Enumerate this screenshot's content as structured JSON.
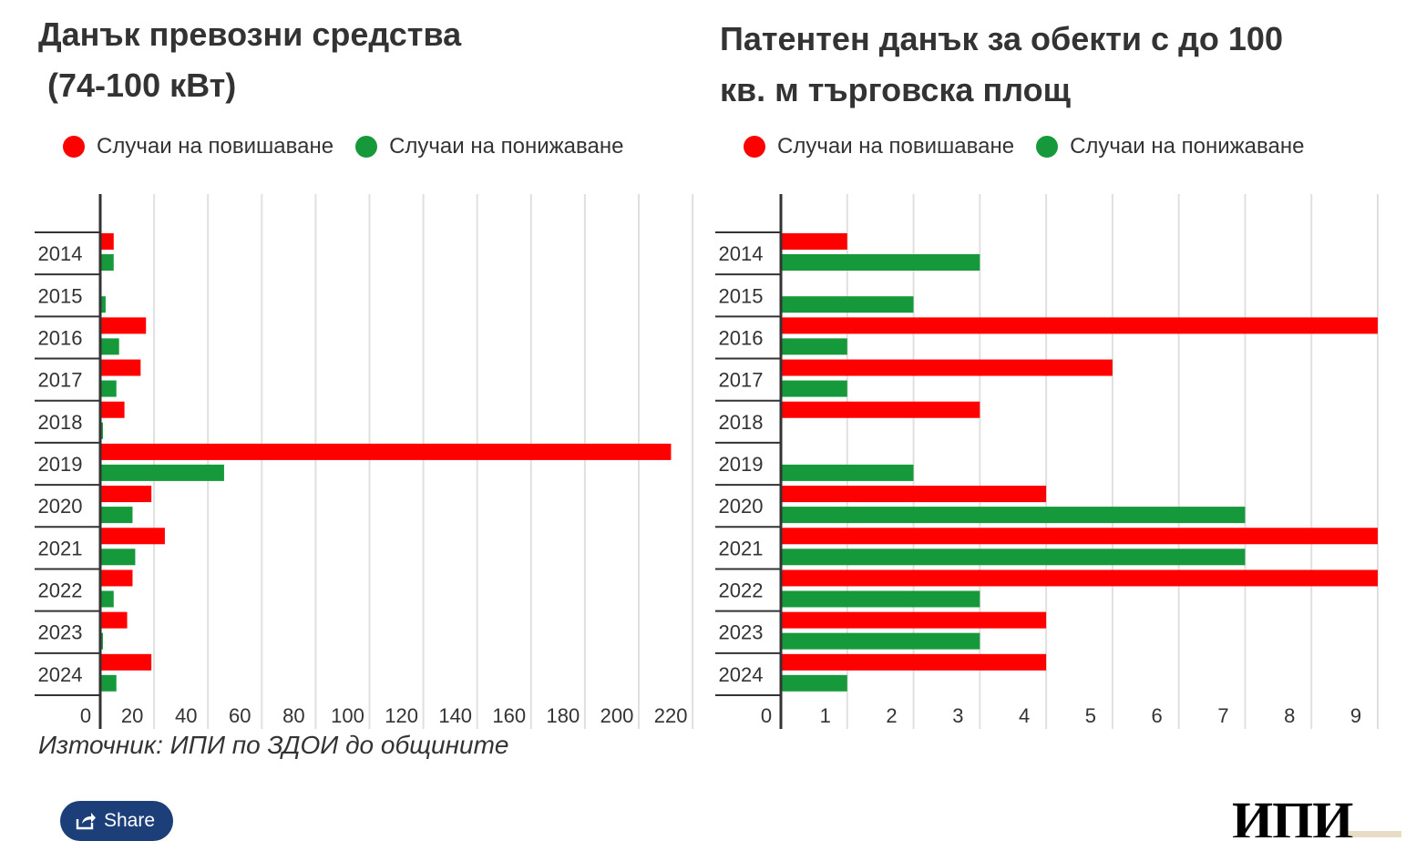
{
  "source_note": "Източник: ИПИ по ЗДОИ до общините",
  "share_label": "Share",
  "logo_text": "ИПИ",
  "colors": {
    "increase": "#ff0000",
    "decrease": "#16993a",
    "grid": "#e0e0e0",
    "axis": "#333333"
  },
  "chart_data": [
    {
      "type": "bar",
      "orientation": "horizontal",
      "title": "Данък превозни средства\n (74-100 кВт)",
      "legend": [
        "Случаи на повишаване",
        "Случаи на понижаване"
      ],
      "categories": [
        "2014",
        "2015",
        "2016",
        "2017",
        "2018",
        "2019",
        "2020",
        "2021",
        "2022",
        "2023",
        "2024"
      ],
      "series": [
        {
          "name": "Случаи на повишаване",
          "values": [
            5,
            0,
            17,
            15,
            9,
            212,
            19,
            24,
            12,
            10,
            19
          ]
        },
        {
          "name": "Случаи на понижаване",
          "values": [
            5,
            2,
            7,
            6,
            1,
            46,
            12,
            13,
            5,
            1,
            6
          ]
        }
      ],
      "xlim": [
        0,
        222
      ],
      "xticks": [
        0,
        20,
        40,
        60,
        80,
        100,
        120,
        140,
        160,
        180,
        200,
        220
      ],
      "xticklabels": [
        "0",
        "20",
        "40",
        "60",
        "80",
        "100",
        "120",
        "140",
        "160",
        "180",
        "200",
        "220"
      ],
      "xlabel": "",
      "ylabel": "",
      "grid": true
    },
    {
      "type": "bar",
      "orientation": "horizontal",
      "title": "Патентен данък за обекти с до 100\nкв. м търговска площ",
      "legend": [
        "Случаи на повишаване",
        "Случаи на понижаване"
      ],
      "categories": [
        "2014",
        "2015",
        "2016",
        "2017",
        "2018",
        "2019",
        "2020",
        "2021",
        "2022",
        "2023",
        "2024"
      ],
      "series": [
        {
          "name": "Случаи на повишаване",
          "values": [
            1,
            0,
            9,
            5,
            3,
            0,
            4,
            9,
            9,
            4,
            4
          ]
        },
        {
          "name": "Случаи на понижаване",
          "values": [
            3,
            2,
            1,
            1,
            0,
            2,
            7,
            7,
            3,
            3,
            1
          ]
        }
      ],
      "xlim": [
        0,
        9
      ],
      "xticks": [
        0,
        1,
        2,
        3,
        4,
        5,
        6,
        7,
        8,
        9
      ],
      "xticklabels": [
        "0",
        "1",
        "2",
        "3",
        "4",
        "5",
        "6",
        "7",
        "8",
        "9"
      ],
      "xlabel": "",
      "ylabel": "",
      "grid": true
    }
  ]
}
